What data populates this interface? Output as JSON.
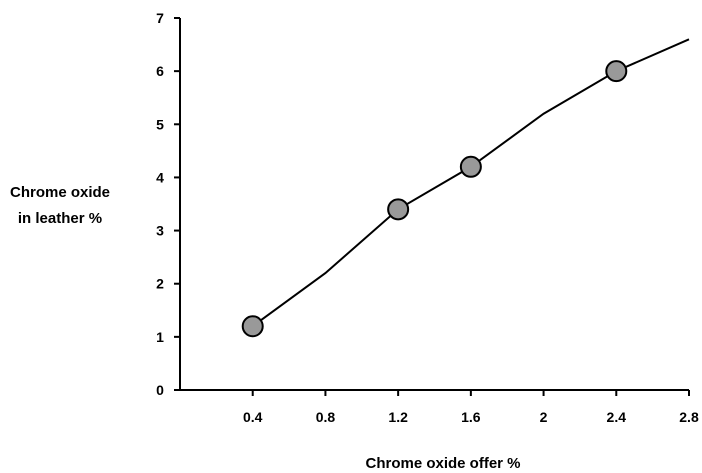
{
  "chart_data": {
    "type": "line",
    "title": "",
    "xlabel": "Chrome oxide offer %",
    "ylabel_lines": [
      "Chrome oxide",
      "in leather %"
    ],
    "xlim": [
      0,
      2.8
    ],
    "ylim": [
      0,
      7
    ],
    "x_ticks": [
      {
        "value": 0.4,
        "label": "0.4"
      },
      {
        "value": 0.8,
        "label": "0.8"
      },
      {
        "value": 1.2,
        "label": "1.2"
      },
      {
        "value": 1.6,
        "label": "1.6"
      },
      {
        "value": 2.0,
        "label": "2"
      },
      {
        "value": 2.4,
        "label": "2.4"
      },
      {
        "value": 2.8,
        "label": "2.8"
      }
    ],
    "y_ticks": [
      {
        "value": 0,
        "label": "0"
      },
      {
        "value": 1,
        "label": "1"
      },
      {
        "value": 2,
        "label": "2"
      },
      {
        "value": 3,
        "label": "3"
      },
      {
        "value": 4,
        "label": "4"
      },
      {
        "value": 5,
        "label": "5"
      },
      {
        "value": 6,
        "label": "6"
      },
      {
        "value": 7,
        "label": "7"
      }
    ],
    "grid": false,
    "legend": "none",
    "series": [
      {
        "line_x": [
          0.4,
          0.8,
          1.2,
          1.6,
          2.0,
          2.4,
          2.8
        ],
        "line_y": [
          1.2,
          2.2,
          3.4,
          4.2,
          5.2,
          6.0,
          6.6
        ],
        "marker_x": [
          0.4,
          1.2,
          1.6,
          2.4
        ],
        "marker_y": [
          1.2,
          3.4,
          4.2,
          6.0
        ],
        "line_color": "#000000",
        "marker_fill": "#999999",
        "marker_stroke": "#000000"
      }
    ]
  }
}
